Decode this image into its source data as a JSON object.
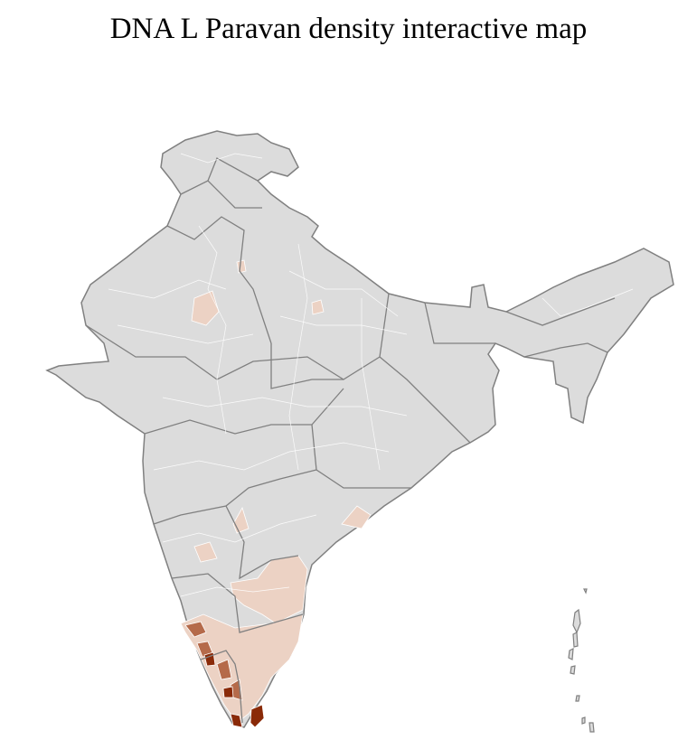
{
  "title": "DNA L Paravan density interactive map",
  "colors": {
    "background": "#ffffff",
    "no_data": "#dcdcdc",
    "district_border": "#ffffff",
    "state_border": "#808080",
    "low_density": "#ecd2c4",
    "medium_density": "#b56a4a",
    "high_density": "#8a2a08"
  }
}
